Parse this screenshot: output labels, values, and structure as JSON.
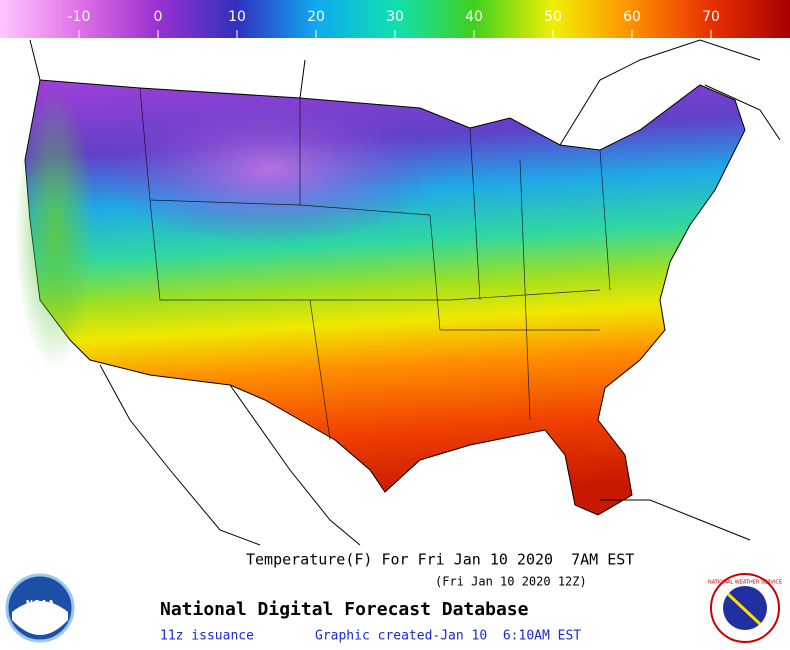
{
  "colorbar": {
    "range": [
      -20,
      80
    ],
    "ticks": [
      -10,
      0,
      10,
      20,
      30,
      40,
      50,
      60,
      70
    ]
  },
  "footer": {
    "title": "Temperature(F) For Fri Jan 10 2020  7AM EST",
    "subtitle": "(Fri Jan 10 2020 12Z)",
    "database": "National Digital Forecast Database",
    "issuance": "11z issuance",
    "created": "Graphic created-Jan 10  6:10AM EST"
  },
  "logos": {
    "noaa": "NOAA",
    "nws": "NATIONAL WEATHER SERVICE"
  }
}
